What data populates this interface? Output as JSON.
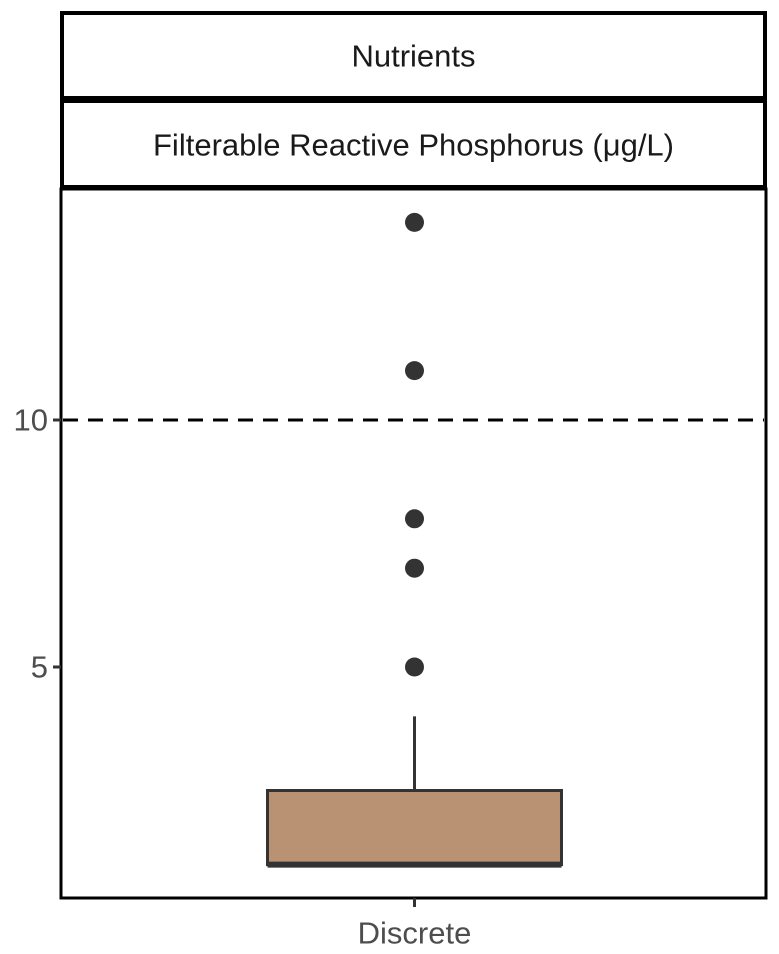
{
  "chart_data": {
    "type": "box",
    "facet_strip_top": "Nutrients",
    "facet_strip_sub": "Filterable Reactive Phosphorus (μg/L)",
    "categories": [
      "Discrete"
    ],
    "y_ticks": [
      5,
      10
    ],
    "ylim": [
      0.5,
      14.5
    ],
    "reference_line": {
      "y": 10,
      "style": "dashed"
    },
    "boxes": [
      {
        "category": "Discrete",
        "q1": 1,
        "median": 1,
        "q3": 2.5,
        "whisker_low": 1,
        "whisker_high": 4,
        "outliers": [
          5,
          7,
          8,
          11,
          14
        ]
      }
    ],
    "colors": {
      "box_fill": "#b89273",
      "box_stroke": "#333333",
      "points": "#333333"
    },
    "grid": false
  }
}
